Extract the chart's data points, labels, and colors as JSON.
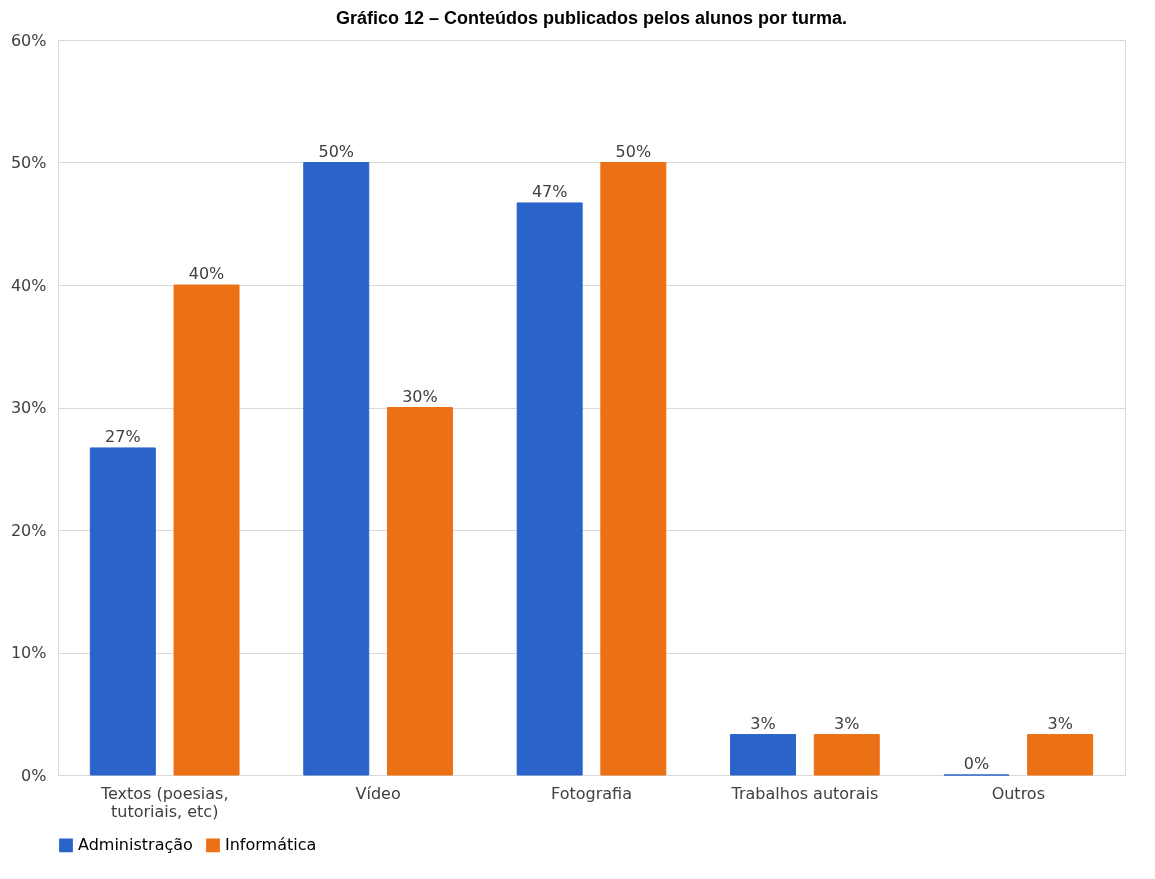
{
  "chart_data": {
    "type": "bar",
    "title": "Gráfico 12 – Conteúdos publicados pelos alunos por turma.",
    "categories": [
      "Textos (poesias, tutoriais, etc)",
      "Vídeo",
      "Fotografia",
      "Trabalhos autorais",
      "Outros"
    ],
    "series": [
      {
        "name": "Administração",
        "color": "#2a63c9",
        "values": [
          26.7,
          50,
          46.7,
          3.3,
          0
        ],
        "value_labels": [
          "27%",
          "50%",
          "47%",
          "3%",
          "0%"
        ]
      },
      {
        "name": "Informática",
        "color": "#ec7014",
        "values": [
          40,
          30,
          50,
          3.3,
          3.3
        ],
        "value_labels": [
          "40%",
          "30%",
          "50%",
          "3%",
          "3%"
        ]
      }
    ],
    "ylim": [
      0,
      60
    ],
    "yticks": [
      {
        "value": 0,
        "label": "0%"
      },
      {
        "value": 10,
        "label": "10%"
      },
      {
        "value": 20,
        "label": "20%"
      },
      {
        "value": 30,
        "label": "30%"
      },
      {
        "value": 40,
        "label": "40%"
      },
      {
        "value": 50,
        "label": "50%"
      },
      {
        "value": 60,
        "label": "60%"
      }
    ],
    "grid": "y",
    "legend": "bottom"
  }
}
